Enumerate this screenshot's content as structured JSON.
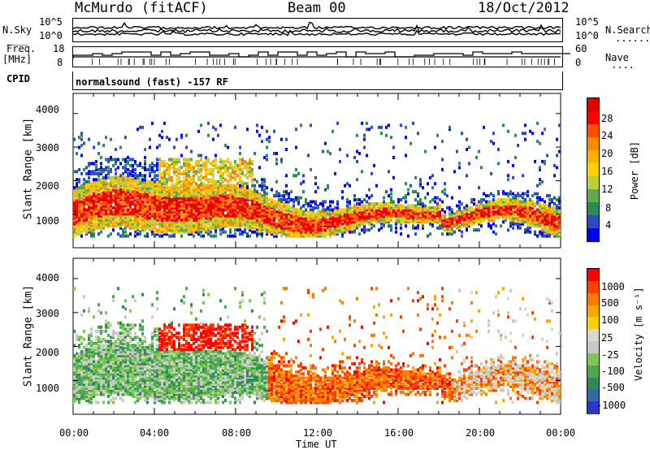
{
  "header": {
    "station": "McMurdo (fitACF)",
    "beam": "Beam 00",
    "date": "18/Oct/2012"
  },
  "top_panels": {
    "nsky_label": "N.Sky",
    "nsearch_label": "N.Search",
    "nsearch_dots": ".......",
    "freq_label": "Freq.",
    "freq_unit": "[MHz]",
    "nave_label": "Nave",
    "nave_dots": "....",
    "cpid_label": "CPID",
    "cpid_value": "normalsound (fast) -157 RF",
    "noise_left_ticks": [
      "10^5",
      "10^0"
    ],
    "noise_right_ticks": [
      "10^5",
      "10^0"
    ],
    "freq_ticks": [
      "18",
      "8"
    ],
    "nave_ticks": [
      "60",
      "0"
    ]
  },
  "chart_data": [
    {
      "type": "heatmap",
      "quantity": "Power",
      "ylabel": "Slant Range [km]",
      "ylim": [
        0,
        4600
      ],
      "yticks": [
        "4000",
        "3000",
        "2000",
        "1000"
      ],
      "colorbar_label": "Power [dB]",
      "colorbar_ticks": [
        "28",
        "24",
        "20",
        "16",
        "12",
        "8",
        "4"
      ],
      "colorbar_colors": [
        "#0000ff",
        "#2a4cc9",
        "#2e8b57",
        "#5faa4f",
        "#b9d140",
        "#ffd000",
        "#ffb000",
        "#ff8800",
        "#ff5000",
        "#ff0000",
        "#e00000"
      ],
      "xlim_hours": [
        0,
        24
      ]
    },
    {
      "type": "heatmap",
      "quantity": "Velocity",
      "ylabel": "Slant Range [km]",
      "ylim": [
        0,
        4600
      ],
      "yticks": [
        "4000",
        "3000",
        "2000",
        "1000"
      ],
      "colorbar_label": "Velocity [m s⁻¹]",
      "colorbar_ticks": [
        "1000",
        "500",
        "100",
        "25",
        "-25",
        "-100",
        "-500",
        "-1000"
      ],
      "colorbar_colors": [
        "#2a35c9",
        "#2e6ba8",
        "#2e8b57",
        "#4fa84f",
        "#7cc94e",
        "#c8c8c8",
        "#d8d8c8",
        "#ffd000",
        "#ffa500",
        "#ff7a00",
        "#ff4000",
        "#ff0000"
      ],
      "xlim_hours": [
        0,
        24
      ]
    }
  ],
  "x_axis": {
    "label": "Time UT",
    "ticks": [
      "00:00",
      "04:00",
      "08:00",
      "12:00",
      "16:00",
      "20:00",
      "00:00"
    ]
  }
}
